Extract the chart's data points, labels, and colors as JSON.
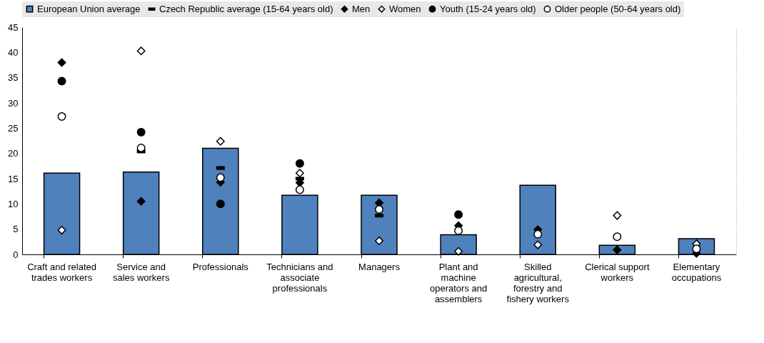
{
  "chart_data": {
    "type": "bar",
    "categories": [
      "Craft and related\ntrades workers",
      "Service and\nsales workers",
      "Professionals",
      "Technicians and\nassociate\nprofessionals",
      "Managers",
      "Plant and\nmachine\noperators and\nassemblers",
      "Skilled\nagricultural,\nforestry and\nfishery workers",
      "Clerical support\nworkers",
      "Elementary\noccupations"
    ],
    "series": [
      {
        "name": "European Union average",
        "type": "bar",
        "color": "#4f81bd",
        "values": [
          16.1,
          16.3,
          21.0,
          11.7,
          11.7,
          3.9,
          13.7,
          1.8,
          3.1
        ]
      },
      {
        "name": "Czech Republic average (15-64 years old)",
        "type": "scatter",
        "marker": "square",
        "color": "#000000",
        "values": [
          null,
          20.4,
          17.1,
          15.0,
          7.7,
          null,
          null,
          null,
          null
        ]
      },
      {
        "name": "Men",
        "type": "scatter",
        "marker": "diamond",
        "color": "#000000",
        "values": [
          38.0,
          10.5,
          14.3,
          14.2,
          10.2,
          5.7,
          4.9,
          0.9,
          0.2
        ]
      },
      {
        "name": "Women",
        "type": "scatter",
        "marker": "diamond",
        "color": "#ffffff",
        "values": [
          4.8,
          40.3,
          22.4,
          16.1,
          2.7,
          0.6,
          1.9,
          7.7,
          2.1
        ]
      },
      {
        "name": "Youth (15-24 years old)",
        "type": "scatter",
        "marker": "circle",
        "color": "#000000",
        "values": [
          34.3,
          24.2,
          10.0,
          18.0,
          null,
          7.9,
          null,
          null,
          null
        ]
      },
      {
        "name": "Older people (50-64 years old)",
        "type": "scatter",
        "marker": "circle",
        "color": "#ffffff",
        "values": [
          27.3,
          21.1,
          15.2,
          12.8,
          8.9,
          4.7,
          4.0,
          3.5,
          1.1
        ]
      }
    ],
    "ylim": [
      0,
      45
    ],
    "yticks": [
      0,
      5,
      10,
      15,
      20,
      25,
      30,
      35,
      40,
      45
    ],
    "grid": true,
    "legend": "top"
  }
}
